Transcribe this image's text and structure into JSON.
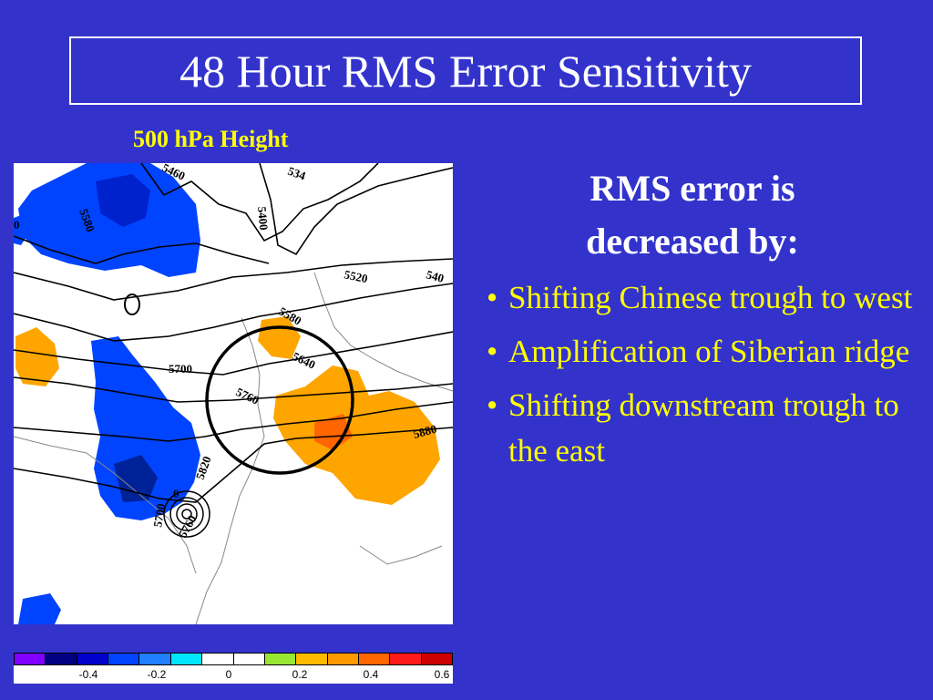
{
  "slide": {
    "title": "48 Hour RMS Error Sensitivity",
    "map_label": "500 hPa Height",
    "heading": "RMS error is decreased by:",
    "bullets": [
      "Shifting Chinese trough to west",
      "Amplification of Siberian ridge",
      "Shifting downstream trough to the east"
    ]
  },
  "map": {
    "contour_labels": [
      "5460",
      "534",
      "5580",
      "5400",
      "5520",
      "540",
      "0",
      "5580",
      "5700",
      "5640",
      "5760",
      "5880",
      "5820",
      "5760",
      "5700",
      "0"
    ]
  },
  "colorbar": {
    "colors": [
      "#7f00ff",
      "#000080",
      "#0000cc",
      "#0044ff",
      "#2080ff",
      "#00e6ff",
      "#ffffff",
      "#ffffff",
      "#99e633",
      "#ffbb00",
      "#ff9900",
      "#ff6600",
      "#ff1a1a",
      "#cc0000"
    ],
    "tick_labels": [
      "-0.4",
      "-0.2",
      "0",
      "0.2",
      "0.4",
      "0.6"
    ]
  }
}
